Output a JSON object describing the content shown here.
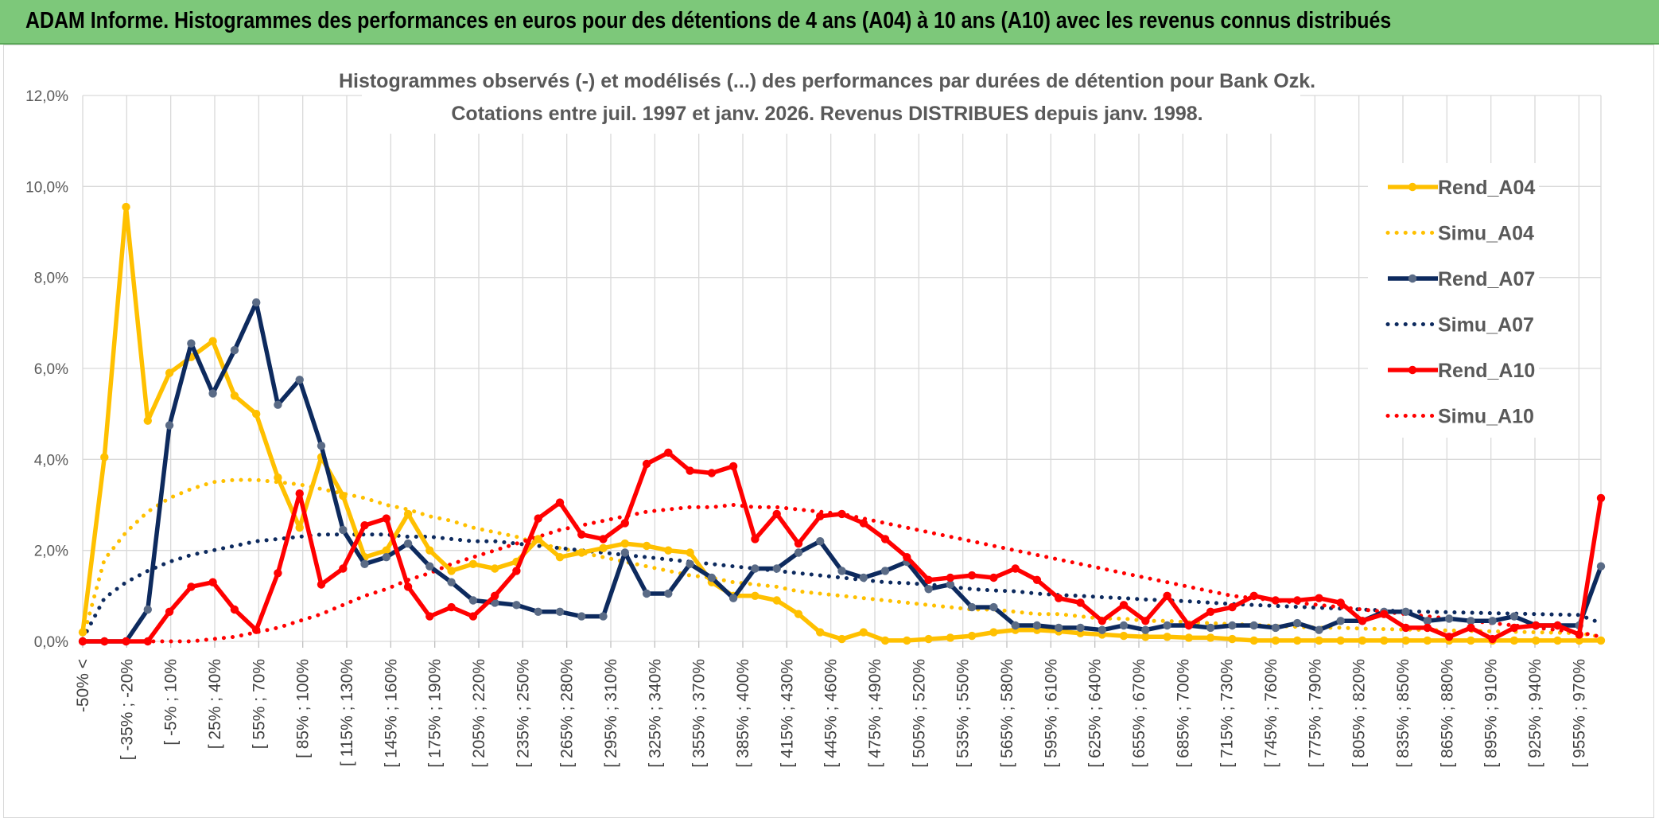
{
  "banner": {
    "title": "ADAM Informe. Histogrammes des performances en euros pour des détentions de 4 ans (A04) à 10 ans (A10) avec les revenus connus distribués"
  },
  "colors": {
    "banner": "#7dc87a",
    "A04": "#ffc000",
    "A07": "#0d2a5e",
    "A07_marker": "#5a6b86",
    "A10": "#ff0000",
    "grid": "#d9d9d9"
  },
  "chart_data": {
    "type": "line",
    "title_line1": "Histogrammes observés (-) et modélisés (...) des performances par durées de détention pour Bank Ozk.",
    "title_line2": "Cotations entre juil. 1997 et janv. 2026. Revenus DISTRIBUES depuis janv. 1998.",
    "ylim": [
      0,
      12
    ],
    "ytick_values": [
      0,
      2,
      4,
      6,
      8,
      10,
      12
    ],
    "ytick_labels": [
      "0,0%",
      "2,0%",
      "4,0%",
      "6,0%",
      "8,0%",
      "10,0%",
      "12,0%"
    ],
    "grid": true,
    "legend_position": "right",
    "x_tick_labels": [
      "-50% <",
      "[ -35% ; -20%",
      "[ -5% ; 10%",
      "[ 25% ; 40%",
      "[ 55% ; 70%",
      "[ 85% ; 100%",
      "[ 115% ; 130%",
      "[ 145% ; 160%",
      "[ 175% ; 190%",
      "[ 205% ; 220%",
      "[ 235% ; 250%",
      "[ 265% ; 280%",
      "[ 295% ; 310%",
      "[ 325% ; 340%",
      "[ 355% ; 370%",
      "[ 385% ; 400%",
      "[ 415% ; 430%",
      "[ 445% ; 460%",
      "[ 475% ; 490%",
      "[ 505% ; 520%",
      "[ 535% ; 550%",
      "[ 565% ; 580%",
      "[ 595% ; 610%",
      "[ 625% ; 640%",
      "[ 655% ; 670%",
      "[ 685% ; 700%",
      "[ 715% ; 730%",
      "[ 745% ; 760%",
      "[ 775% ; 790%",
      "[ 805% ; 820%",
      "[ 835% ; 850%",
      "[ 865% ; 880%",
      "[ 895% ; 910%",
      "[ 925% ; 940%",
      "[ 955% ; 970%"
    ],
    "series": [
      {
        "name": "Rend_A04",
        "style": "solid",
        "color": "#ffc000",
        "marker": true,
        "values": [
          0.2,
          4.05,
          9.55,
          4.85,
          5.9,
          6.25,
          6.6,
          5.4,
          5.0,
          3.6,
          2.5,
          4.05,
          3.2,
          1.85,
          2.0,
          2.8,
          2.0,
          1.55,
          1.7,
          1.6,
          1.75,
          2.25,
          1.85,
          1.95,
          2.05,
          2.15,
          2.1,
          2.0,
          1.95,
          1.3,
          1.0,
          1.0,
          0.9,
          0.6,
          0.2,
          0.05,
          0.2,
          0.02,
          0.02,
          0.05,
          0.08,
          0.12,
          0.2,
          0.25,
          0.25,
          0.22,
          0.18,
          0.15,
          0.12,
          0.1,
          0.1,
          0.08,
          0.08,
          0.05,
          0.02,
          0.02,
          0.02,
          0.02,
          0.02,
          0.02,
          0.02,
          0.02,
          0.02,
          0.02,
          0.02,
          0.02,
          0.02,
          0.02,
          0.02,
          0.02,
          0.02
        ]
      },
      {
        "name": "Simu_A04",
        "style": "dotted",
        "color": "#ffc000",
        "marker": false,
        "values": [
          0.05,
          1.8,
          2.4,
          2.85,
          3.15,
          3.35,
          3.5,
          3.55,
          3.55,
          3.5,
          3.45,
          3.35,
          3.25,
          3.15,
          3.0,
          2.9,
          2.75,
          2.65,
          2.5,
          2.4,
          2.3,
          2.15,
          2.05,
          1.95,
          1.85,
          1.75,
          1.65,
          1.55,
          1.45,
          1.4,
          1.3,
          1.25,
          1.2,
          1.1,
          1.05,
          1.0,
          0.95,
          0.9,
          0.85,
          0.8,
          0.75,
          0.7,
          0.7,
          0.65,
          0.6,
          0.6,
          0.55,
          0.5,
          0.5,
          0.45,
          0.45,
          0.42,
          0.4,
          0.38,
          0.36,
          0.34,
          0.32,
          0.3,
          0.3,
          0.28,
          0.27,
          0.26,
          0.25,
          0.24,
          0.23,
          0.22,
          0.21,
          0.2,
          0.19,
          0.18,
          0.1
        ]
      },
      {
        "name": "Rend_A07",
        "style": "solid",
        "color": "#0d2a5e",
        "marker": true,
        "values": [
          0.0,
          0.0,
          0.0,
          0.7,
          4.75,
          6.55,
          5.45,
          6.4,
          7.45,
          5.2,
          5.75,
          4.3,
          2.45,
          1.7,
          1.85,
          2.15,
          1.65,
          1.3,
          0.9,
          0.85,
          0.8,
          0.65,
          0.65,
          0.55,
          0.55,
          1.95,
          1.05,
          1.05,
          1.7,
          1.4,
          0.95,
          1.6,
          1.6,
          1.95,
          2.2,
          1.55,
          1.4,
          1.55,
          1.75,
          1.15,
          1.25,
          0.75,
          0.75,
          0.35,
          0.35,
          0.3,
          0.3,
          0.25,
          0.35,
          0.25,
          0.35,
          0.35,
          0.3,
          0.35,
          0.35,
          0.3,
          0.4,
          0.25,
          0.45,
          0.45,
          0.65,
          0.65,
          0.45,
          0.5,
          0.45,
          0.45,
          0.55,
          0.35,
          0.35,
          0.35,
          1.65
        ]
      },
      {
        "name": "Simu_A07",
        "style": "dotted",
        "color": "#0d2a5e",
        "marker": false,
        "values": [
          0.05,
          0.95,
          1.3,
          1.55,
          1.75,
          1.9,
          2.0,
          2.1,
          2.2,
          2.25,
          2.3,
          2.35,
          2.35,
          2.35,
          2.35,
          2.3,
          2.3,
          2.25,
          2.2,
          2.2,
          2.15,
          2.1,
          2.05,
          2.0,
          1.95,
          1.9,
          1.85,
          1.8,
          1.75,
          1.7,
          1.65,
          1.6,
          1.55,
          1.5,
          1.45,
          1.4,
          1.35,
          1.3,
          1.28,
          1.25,
          1.2,
          1.15,
          1.12,
          1.1,
          1.05,
          1.02,
          1.0,
          0.97,
          0.95,
          0.92,
          0.9,
          0.88,
          0.85,
          0.82,
          0.8,
          0.78,
          0.76,
          0.74,
          0.72,
          0.7,
          0.68,
          0.66,
          0.65,
          0.64,
          0.63,
          0.62,
          0.61,
          0.6,
          0.59,
          0.58,
          0.4
        ]
      },
      {
        "name": "Rend_A10",
        "style": "solid",
        "color": "#ff0000",
        "marker": true,
        "values": [
          0.0,
          0.0,
          0.0,
          0.0,
          0.65,
          1.2,
          1.3,
          0.7,
          0.25,
          1.5,
          3.25,
          1.25,
          1.6,
          2.55,
          2.7,
          1.2,
          0.55,
          0.75,
          0.55,
          1.0,
          1.55,
          2.7,
          3.05,
          2.35,
          2.25,
          2.6,
          3.9,
          4.15,
          3.75,
          3.7,
          3.85,
          2.25,
          2.8,
          2.15,
          2.75,
          2.8,
          2.6,
          2.25,
          1.85,
          1.35,
          1.4,
          1.45,
          1.4,
          1.6,
          1.35,
          0.95,
          0.85,
          0.45,
          0.8,
          0.45,
          1.0,
          0.35,
          0.65,
          0.75,
          1.0,
          0.9,
          0.9,
          0.95,
          0.85,
          0.45,
          0.6,
          0.3,
          0.3,
          0.1,
          0.3,
          0.05,
          0.3,
          0.35,
          0.35,
          0.15,
          3.15
        ]
      },
      {
        "name": "Simu_A10",
        "style": "dotted",
        "color": "#ff0000",
        "marker": false,
        "values": [
          0.0,
          0.0,
          0.0,
          0.0,
          0.0,
          0.0,
          0.05,
          0.1,
          0.2,
          0.3,
          0.45,
          0.6,
          0.8,
          1.0,
          1.15,
          1.35,
          1.5,
          1.7,
          1.85,
          2.0,
          2.15,
          2.3,
          2.45,
          2.55,
          2.65,
          2.75,
          2.85,
          2.9,
          2.95,
          2.95,
          3.0,
          2.95,
          2.95,
          2.9,
          2.85,
          2.8,
          2.7,
          2.6,
          2.5,
          2.4,
          2.3,
          2.2,
          2.1,
          2.0,
          1.9,
          1.8,
          1.7,
          1.6,
          1.5,
          1.4,
          1.3,
          1.2,
          1.1,
          1.0,
          0.95,
          0.9,
          0.85,
          0.8,
          0.75,
          0.7,
          0.65,
          0.6,
          0.55,
          0.5,
          0.45,
          0.4,
          0.35,
          0.3,
          0.25,
          0.2,
          0.1
        ]
      }
    ]
  }
}
